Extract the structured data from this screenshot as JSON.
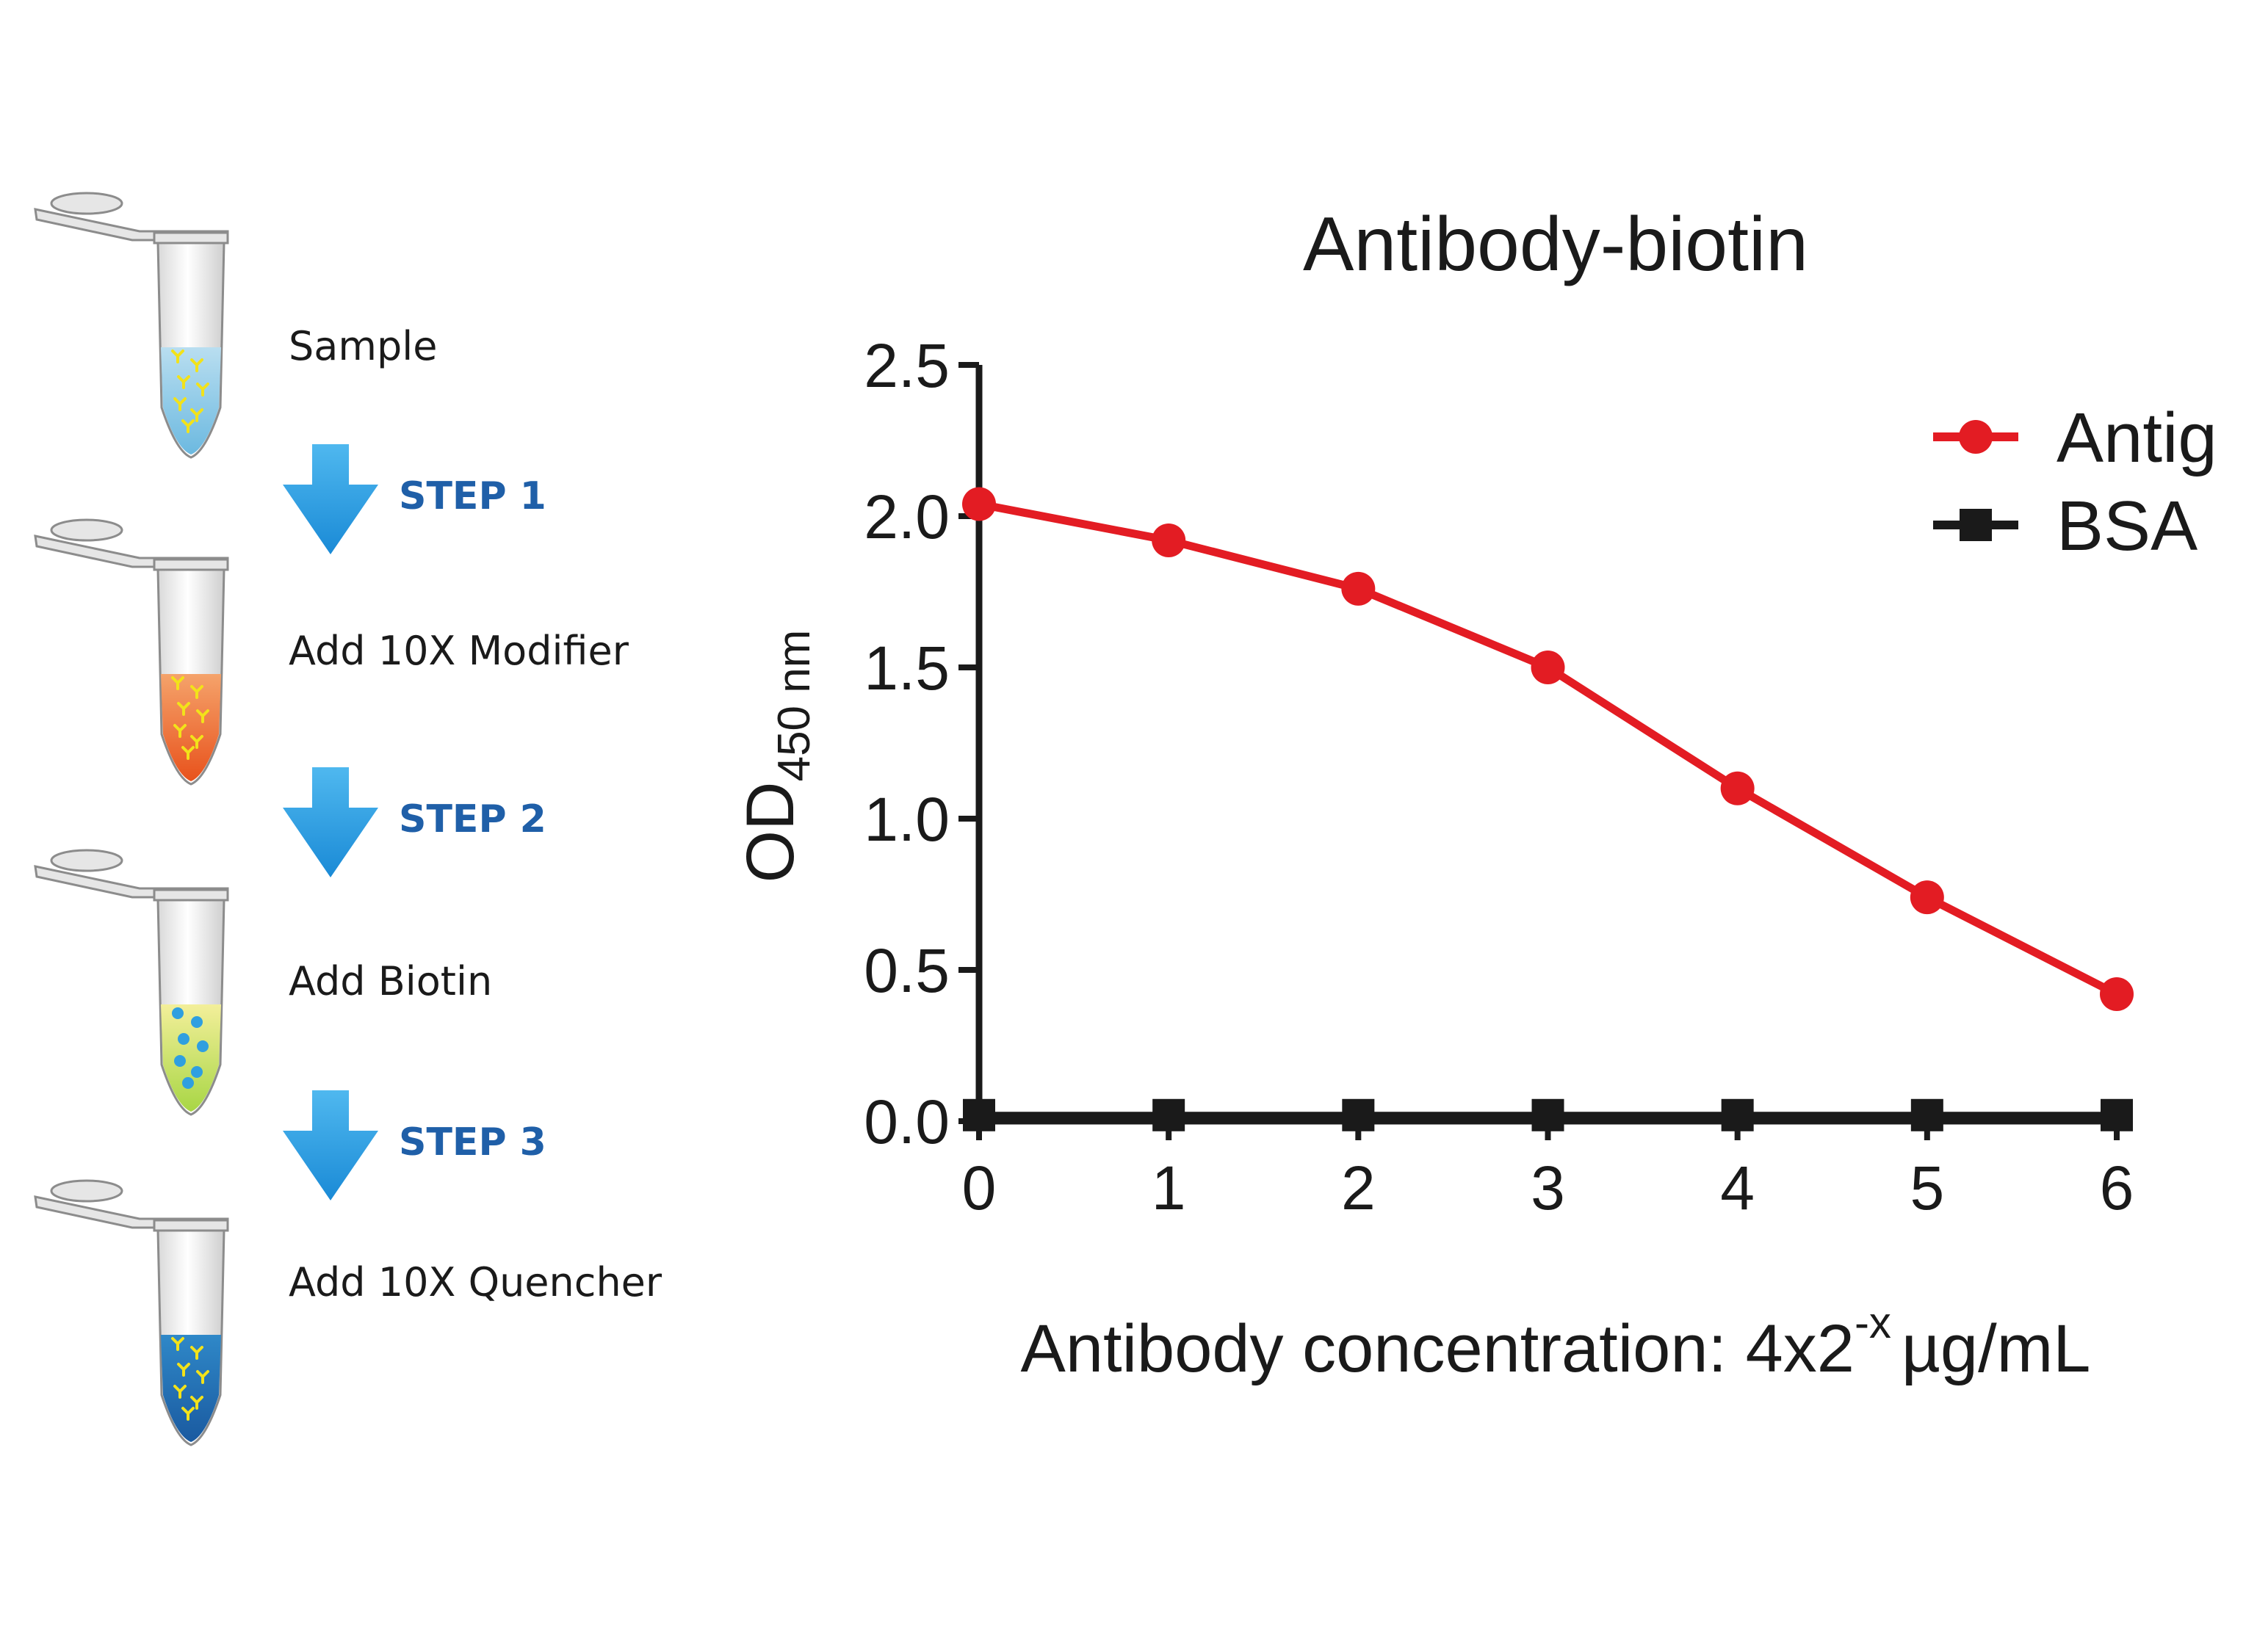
{
  "protocol": {
    "stages": [
      {
        "label": "Sample",
        "liquid_top": "#b9def0",
        "liquid_bottom": "#6cb9e0",
        "particles": "#f2e21a"
      },
      {
        "label": "Add 10X Modifier",
        "liquid_top": "#f5a36b",
        "liquid_bottom": "#e8521c",
        "particles": "#f2e21a"
      },
      {
        "label": "Add Biotin",
        "liquid_top": "#f3ef9a",
        "liquid_bottom": "#a8d645",
        "particles": "#2f9fe0"
      },
      {
        "label": "Add 10X Quencher",
        "liquid_top": "#2f88c8",
        "liquid_bottom": "#1a5aa0",
        "particles": "#f2e21a"
      }
    ],
    "steps": [
      "STEP 1",
      "STEP 2",
      "STEP 3"
    ],
    "arrow_color": "#1e9be0",
    "step_color": "#1f5fa8",
    "icons": [
      "microcentrifuge-tube-icon",
      "down-arrow-icon"
    ]
  },
  "chart_data": {
    "type": "line",
    "title": "Antibody-biotin",
    "ylabel_main": "OD",
    "ylabel_sub": "450 nm",
    "xlabel_main": "Antibody concentration: 4x2",
    "xlabel_sup": "-x",
    "xlabel_unit": "µg/mL",
    "x": [
      0,
      1,
      2,
      3,
      4,
      5,
      6
    ],
    "xlim": [
      0,
      6
    ],
    "ylim": [
      0,
      2.5
    ],
    "yticks": [
      "0.0",
      "0.5",
      "1.0",
      "1.5",
      "2.0",
      "2.5"
    ],
    "xticks": [
      "0",
      "1",
      "2",
      "3",
      "4",
      "5",
      "6"
    ],
    "legend_position": "top-right",
    "series": [
      {
        "name": "Antig",
        "marker": "circle",
        "color": "#e31c23",
        "values": [
          2.04,
          1.92,
          1.76,
          1.5,
          1.1,
          0.74,
          0.42
        ]
      },
      {
        "name": "BSA",
        "marker": "square",
        "color": "#1a1a1a",
        "values": [
          0.02,
          0.02,
          0.02,
          0.02,
          0.02,
          0.02,
          0.02
        ]
      }
    ]
  }
}
